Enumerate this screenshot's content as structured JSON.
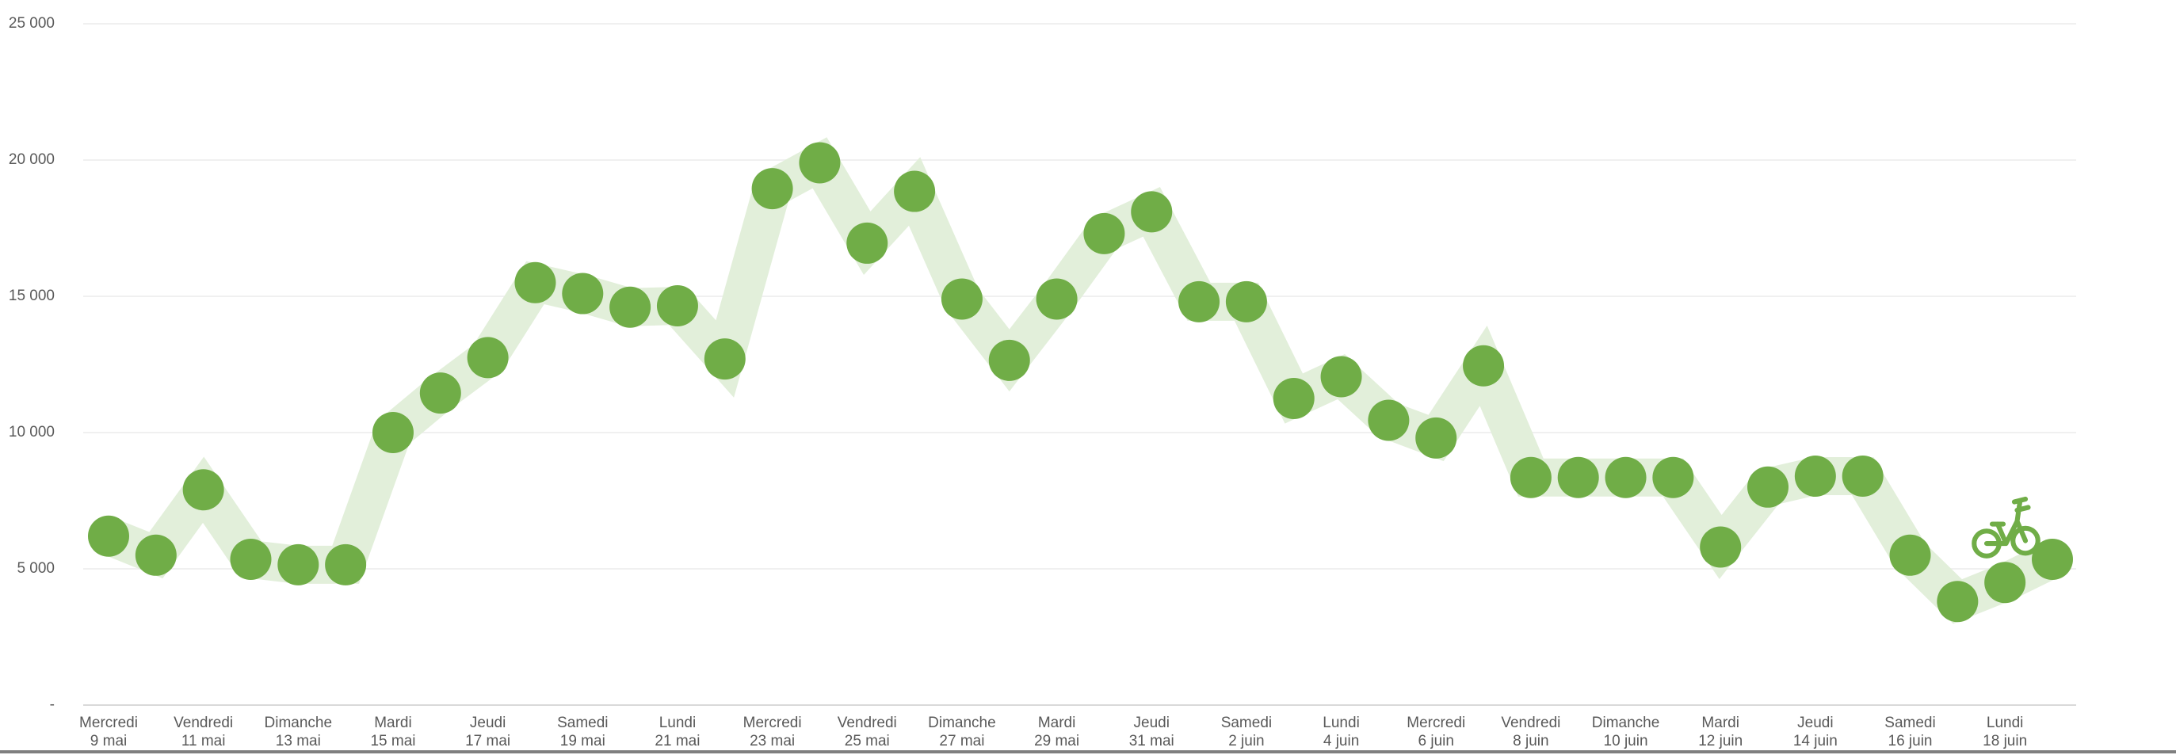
{
  "chart_data": {
    "type": "line",
    "categories": [
      [
        "Mercredi",
        "9 mai"
      ],
      null,
      [
        "Vendredi",
        "11 mai"
      ],
      null,
      [
        "Dimanche",
        "13 mai"
      ],
      null,
      [
        "Mardi",
        "15 mai"
      ],
      null,
      [
        "Jeudi",
        "17 mai"
      ],
      null,
      [
        "Samedi",
        "19 mai"
      ],
      null,
      [
        "Lundi",
        "21 mai"
      ],
      null,
      [
        "Mercredi",
        "23 mai"
      ],
      null,
      [
        "Vendredi",
        "25 mai"
      ],
      null,
      [
        "Dimanche",
        "27 mai"
      ],
      null,
      [
        "Mardi",
        "29 mai"
      ],
      null,
      [
        "Jeudi",
        "31 mai"
      ],
      null,
      [
        "Samedi",
        "2 juin"
      ],
      null,
      [
        "Lundi",
        "4 juin"
      ],
      null,
      [
        "Mercredi",
        "6 juin"
      ],
      null,
      [
        "Vendredi",
        "8 juin"
      ],
      null,
      [
        "Dimanche",
        "10 juin"
      ],
      null,
      [
        "Mardi",
        "12 juin"
      ],
      null,
      [
        "Jeudi",
        "14 juin"
      ],
      null,
      [
        "Samedi",
        "16 juin"
      ],
      null,
      [
        "Lundi",
        "18 juin"
      ],
      null
    ],
    "values": [
      6200,
      5500,
      7900,
      5350,
      5150,
      5150,
      10000,
      11450,
      12750,
      15500,
      15100,
      14600,
      14650,
      12700,
      18950,
      19900,
      16950,
      18850,
      14900,
      12650,
      14900,
      17300,
      18100,
      14800,
      14800,
      11250,
      12050,
      10450,
      9800,
      12450,
      8350,
      8350,
      8350,
      8350,
      5800,
      8000,
      8400,
      8400,
      5500,
      3800,
      4500,
      5350
    ],
    "color": "#70ad47",
    "band_color": "#e2efda",
    "ylim": [
      0,
      25000
    ],
    "yticks": [
      {
        "value": 0,
        "label": "-"
      },
      {
        "value": 5000,
        "label": "5 000"
      },
      {
        "value": 10000,
        "label": "10 000"
      },
      {
        "value": 15000,
        "label": "15 000"
      },
      {
        "value": 20000,
        "label": "20 000"
      },
      {
        "value": 25000,
        "label": "25 000"
      }
    ],
    "grid": true
  }
}
